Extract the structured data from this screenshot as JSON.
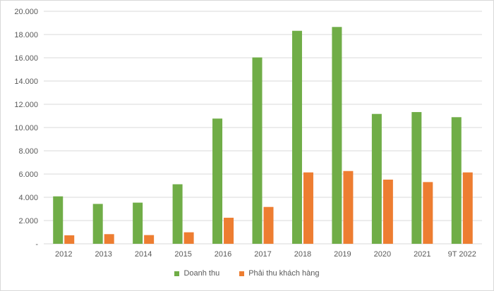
{
  "chart_data": {
    "type": "bar",
    "title": "",
    "xlabel": "",
    "ylabel": "",
    "categories": [
      "2012",
      "2013",
      "2014",
      "2015",
      "2016",
      "2017",
      "2018",
      "2019",
      "2020",
      "2021",
      "9T 2022"
    ],
    "series": [
      {
        "name": "Doanh thu",
        "color": "#70ad47",
        "values": [
          4080,
          3430,
          3540,
          5120,
          10770,
          16030,
          18320,
          18650,
          11170,
          11330,
          10890
        ]
      },
      {
        "name": "Phải thu khách hàng",
        "color": "#ed7d31",
        "values": [
          730,
          830,
          750,
          990,
          2240,
          3170,
          6140,
          6260,
          5520,
          5310,
          6140
        ]
      }
    ],
    "ylim": [
      0,
      20000
    ],
    "yticks": [
      {
        "value": 0,
        "label": "-"
      },
      {
        "value": 2000,
        "label": "2.000"
      },
      {
        "value": 4000,
        "label": "4.000"
      },
      {
        "value": 6000,
        "label": "6.000"
      },
      {
        "value": 8000,
        "label": "8.000"
      },
      {
        "value": 10000,
        "label": "10.000"
      },
      {
        "value": 12000,
        "label": "12.000"
      },
      {
        "value": 14000,
        "label": "14.000"
      },
      {
        "value": 16000,
        "label": "16.000"
      },
      {
        "value": 18000,
        "label": "18.000"
      },
      {
        "value": 20000,
        "label": "20.000"
      }
    ],
    "grid": true,
    "legend": "bottom"
  }
}
